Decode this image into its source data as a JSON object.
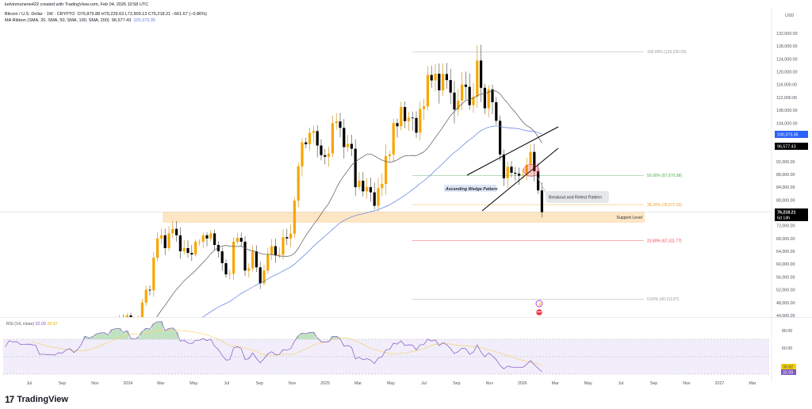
{
  "header": {
    "author_line": "kelvinmunene422 created with TradingView.com, Feb 04, 2026 10:58 UTC",
    "symbol_line": "Bitcoin / U.S. Dollar · 1W · CRYPTO",
    "ohlc": "O76,879.88 H79,229.63 L72,909.13 C76,218.21 −661.67 (−0.86%)",
    "ma_line": "MA Ribbon (SMA, 20, SMA, 50, SMA, 100, SMA, 200)",
    "ma20_value": "96,577.43",
    "ma50_value": "100,373.35"
  },
  "colors": {
    "up": "#f7a600",
    "down": "#000000",
    "ma20": "#555555",
    "ma50": "#5b7be0",
    "rsi": "#7e57c2",
    "rsi_ma": "#f5d36a",
    "fib_50": "#4caf50",
    "fib_382": "#f59c28",
    "fib_236": "#f23645"
  },
  "chart_data": {
    "type": "candlestick",
    "title": "Bitcoin / U.S. Dollar · 1W",
    "currency": "USD",
    "ylim": [
      44000,
      132000
    ],
    "price_ticks": [
      "132,000.00",
      "128,000.00",
      "124,000.00",
      "120,000.00",
      "116,000.00",
      "112,000.00",
      "108,000.00",
      "104,000.00",
      "92,000.00",
      "88,000.00",
      "84,000.00",
      "80,000.00",
      "72,000.00",
      "68,000.00",
      "64,000.00",
      "60,000.00",
      "56,000.00",
      "52,000.00",
      "48,000.00",
      "44,000.00"
    ],
    "price_tick_values": [
      132,
      128,
      124,
      120,
      116,
      112,
      108,
      104,
      92,
      88,
      84,
      80,
      72,
      68,
      64,
      60,
      56,
      52,
      48,
      44
    ],
    "x_labels": [
      "Jul",
      "Sep",
      "Nov",
      "2024",
      "Mar",
      "May",
      "Jul",
      "Sep",
      "Nov",
      "2025",
      "Mar",
      "May",
      "Jul",
      "Sep",
      "Nov",
      "2026",
      "Mar",
      "May",
      "Jul",
      "Sep",
      "Nov",
      "2027",
      "Mar"
    ],
    "weekly_closes_k_prehistory": [
      17,
      21,
      23,
      23,
      23.5,
      22,
      24,
      22.4,
      20,
      22.5,
      27,
      28,
      28,
      28.5,
      30,
      27.8,
      29,
      29.5,
      27,
      27.2,
      26,
      30.5,
      30,
      30.2,
      29.2,
      29.3,
      29.4,
      29.2,
      29,
      26,
      26.1,
      25.9,
      26,
      25.8,
      26.6,
      26.5,
      27.5,
      28,
      27,
      28,
      30,
      34.5,
      34,
      35,
      37,
      37.8,
      38,
      37.5
    ],
    "weekly_closes_k": [
      42,
      43,
      43.5,
      42.5,
      44,
      42,
      41.8,
      43,
      48,
      52,
      51.8,
      62,
      68,
      69,
      65,
      69.6,
      71,
      69,
      64,
      65,
      63.5,
      63,
      67,
      67,
      69,
      68,
      69.6,
      66,
      64,
      60.3,
      56.8,
      57,
      67,
      68.2,
      67,
      58,
      58.7,
      64,
      59,
      54,
      58,
      63,
      65.6,
      62.7,
      63,
      68.4,
      68,
      69.5,
      79.8,
      90.5,
      98,
      97.4,
      101,
      101.5,
      97,
      94,
      93.5,
      94.5,
      104,
      104.5,
      102.5,
      96.5,
      97.5,
      96,
      84,
      86,
      82.7,
      84,
      82.4,
      78.2,
      83.7,
      85,
      93.7,
      94.2,
      104,
      103,
      109,
      104.6,
      105.7,
      105.6,
      101,
      108.4,
      109.2,
      119,
      117.3,
      119.4,
      114.2,
      119.3,
      117.4,
      113.5,
      108.2,
      111,
      116,
      115.3,
      109.6,
      112.2,
      123.5,
      115,
      108.6,
      114.5,
      110.5,
      104.7,
      94.2,
      86.8,
      90.4,
      88.5,
      88.2,
      87.6,
      87.8,
      91,
      95,
      89,
      83,
      76.218
    ],
    "last_price": {
      "value": "76,218.21",
      "countdown": "6d 14h"
    },
    "ma_labels": {
      "ma20": "96,577.43",
      "ma50": "100,373.35"
    },
    "fib_levels": [
      {
        "label": "100.00% (126,230.09)",
        "value": 126.23009,
        "color": "#9598a1"
      },
      {
        "label": "50.00% (87,670.98)",
        "value": 87.67098,
        "color": "#4caf50"
      },
      {
        "label": "38.20% (78,571.03)",
        "value": 78.57103,
        "color": "#f59c28"
      },
      {
        "label": "23.60% (67,311.77)",
        "value": 67.31177,
        "color": "#f23645"
      },
      {
        "label": "0.00% (49,111.87)",
        "value": 49.11187,
        "color": "#9598a1"
      }
    ],
    "support_zone": {
      "label": "Support Level",
      "from": 72.9,
      "to": 76.3
    },
    "annotations": {
      "wedge": "Ascending Wedge Pattern",
      "breakout": "Breakout and Retest Pattern"
    },
    "rsi": {
      "title": "RSI (14, close)",
      "value": "32.09",
      "ma_value": "38.82",
      "ticks": [
        "80.00",
        "60.00"
      ],
      "levels": [
        70,
        50,
        30
      ]
    }
  }
}
